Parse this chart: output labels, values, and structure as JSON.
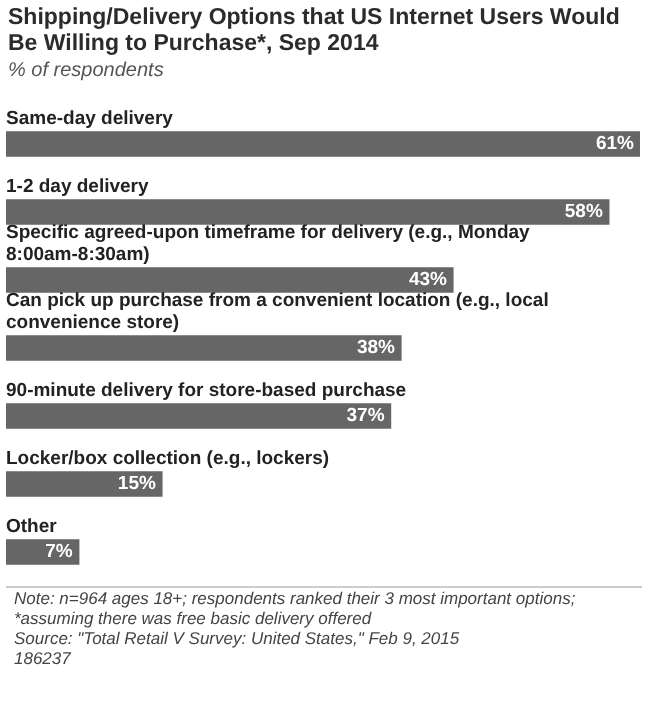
{
  "chart_data": {
    "type": "bar",
    "orientation": "horizontal",
    "title": "Shipping/Delivery Options that US Internet Users Would Be Willing to Purchase*, Sep 2014",
    "subtitle": "% of respondents",
    "categories": [
      "Same-day delivery",
      "1-2 day delivery",
      "Specific agreed-upon timeframe for delivery (e.g., Monday 8:00am-8:30am)",
      "Can pick up purchase from a convenient location (e.g., local convenience store)",
      "90-minute delivery for store-based purchase",
      "Locker/box collection (e.g., lockers)",
      "Other"
    ],
    "values": [
      61,
      58,
      43,
      38,
      37,
      15,
      7
    ],
    "value_labels": [
      "61%",
      "58%",
      "43%",
      "38%",
      "37%",
      "15%",
      "7%"
    ],
    "color": "#666666",
    "legend": false,
    "annotations": [
      "Note: n=964 ages 18+; respondents ranked their 3 most important options; *assuming there was free basic delivery offered",
      "Source: \"Total Retail V Survey: United States,\" Feb 9, 2015",
      "186237"
    ]
  }
}
